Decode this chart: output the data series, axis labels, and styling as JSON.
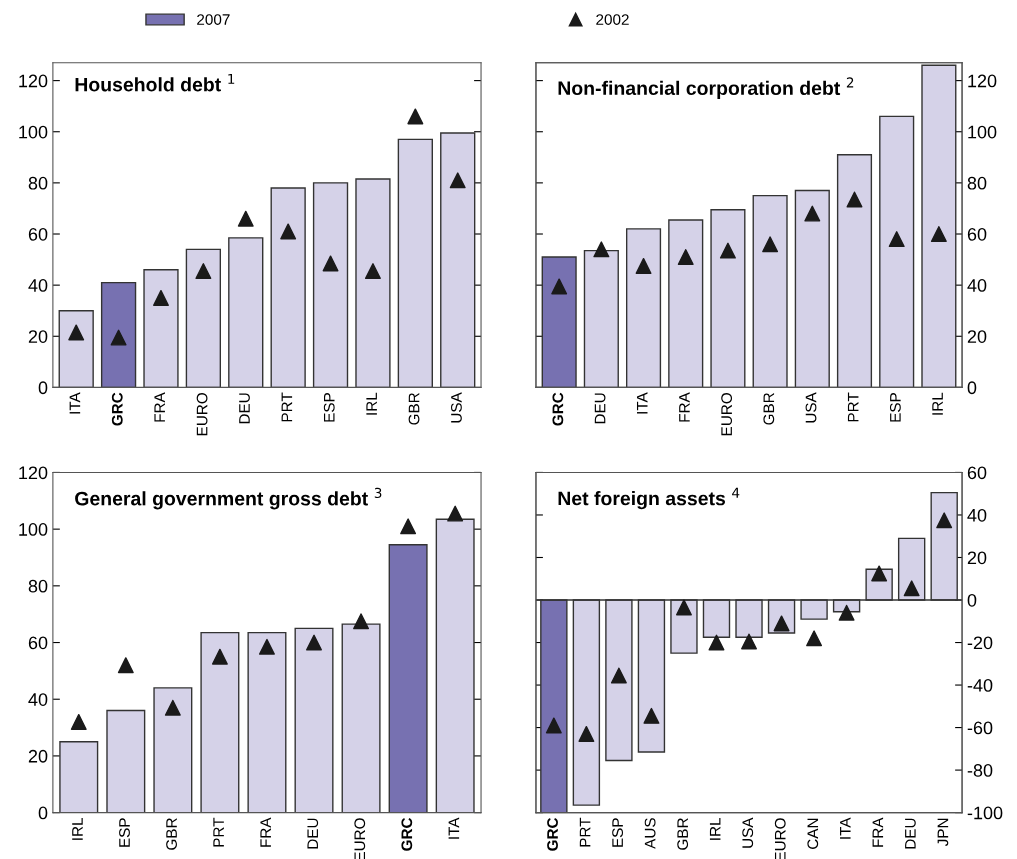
{
  "chart_data": [
    {
      "type": "bar",
      "title": "Household debt $^{1}$",
      "categories": [
        "ITA",
        "GRC",
        "FRA",
        "EURO",
        "DEU",
        "PRT",
        "ESP",
        "IRL",
        "GBR",
        "USA"
      ],
      "ylim": [
        0,
        127
      ],
      "yticks": [
        0,
        20,
        40,
        60,
        80,
        100,
        120
      ],
      "legend": "top",
      "grid": false,
      "series": [
        {
          "name": "2007",
          "colors": [
            "#d5d2e8",
            "#7771b1",
            "#d5d2e8",
            "#d5d2e8",
            "#d5d2e8",
            "#d5d2e8",
            "#d5d2e8",
            "#d5d2e8",
            "#d5d2e8",
            "#d5d2e8"
          ],
          "values": [
            30,
            41,
            46,
            54,
            58.5,
            78,
            80,
            81.5,
            97,
            99.5
          ]
        },
        {
          "name": "2002",
          "type": "scatter",
          "color": "#1a1a1a",
          "marker": "triangle",
          "values": [
            21.5,
            19.5,
            35,
            45.5,
            66,
            61,
            48.5,
            45.5,
            106,
            81
          ]
        }
      ]
    },
    {
      "type": "bar",
      "title": "Non-financial corporation debt $^{2}$",
      "categories": [
        "GRC",
        "DEU",
        "ITA",
        "FRA",
        "EURO",
        "GBR",
        "USA",
        "PRT",
        "ESP",
        "IRL"
      ],
      "y2lim": [
        0,
        127
      ],
      "y2ticks": [
        0,
        20,
        40,
        60,
        80,
        100,
        120
      ],
      "grid": false,
      "series": [
        {
          "name": "2007",
          "axis": "y2",
          "colors": [
            "#7771b1",
            "#d5d2e8",
            "#d5d2e8",
            "#d5d2e8",
            "#d5d2e8",
            "#d5d2e8",
            "#d5d2e8",
            "#d5d2e8",
            "#d5d2e8",
            "#d5d2e8"
          ],
          "values": [
            51,
            53.5,
            62,
            65.5,
            69.5,
            75,
            77,
            91,
            106,
            126
          ]
        },
        {
          "name": "2002",
          "type": "scatter",
          "axis": "y2",
          "color": "#1a1a1a",
          "marker": "triangle",
          "values": [
            39.5,
            54,
            47.5,
            51,
            53.5,
            56,
            68,
            73.5,
            58,
            60
          ]
        }
      ]
    },
    {
      "type": "bar",
      "title": "General government gross debt $^{3}$",
      "categories": [
        "IRL",
        "ESP",
        "GBR",
        "PRT",
        "FRA",
        "DEU",
        "EURO",
        "GRC",
        "ITA"
      ],
      "ylim": [
        0,
        120
      ],
      "yticks": [
        0,
        20,
        40,
        60,
        80,
        100,
        120
      ],
      "grid": false,
      "series": [
        {
          "name": "2007",
          "colors": [
            "#d5d2e8",
            "#d5d2e8",
            "#d5d2e8",
            "#d5d2e8",
            "#d5d2e8",
            "#d5d2e8",
            "#d5d2e8",
            "#7771b1",
            "#d5d2e8"
          ],
          "values": [
            25,
            36,
            44,
            63.5,
            63.5,
            65,
            66.5,
            94.5,
            103.5
          ]
        },
        {
          "name": "2002",
          "type": "scatter",
          "color": "#1a1a1a",
          "marker": "triangle",
          "values": [
            32,
            52,
            37,
            55,
            58.5,
            60,
            67.5,
            101,
            105.5
          ]
        }
      ]
    },
    {
      "type": "bar",
      "title": "Net foreign assets $^{4}$",
      "categories": [
        "GRC",
        "PRT",
        "ESP",
        "AUS",
        "GBR",
        "IRL",
        "USA",
        "EURO",
        "CAN",
        "ITA",
        "FRA",
        "DEU",
        "JPN"
      ],
      "y2lim": [
        -100,
        60
      ],
      "y2ticks": [
        -100,
        -80,
        -60,
        -40,
        -20,
        0,
        20,
        40,
        60
      ],
      "grid": false,
      "ref_lines": [
        {
          "axis": "y2",
          "value": 0,
          "color": "#333333"
        }
      ],
      "series": [
        {
          "name": "2007",
          "axis": "y2",
          "colors": [
            "#7771b1",
            "#d5d2e8",
            "#d5d2e8",
            "#d5d2e8",
            "#d5d2e8",
            "#d5d2e8",
            "#d5d2e8",
            "#d5d2e8",
            "#d5d2e8",
            "#d5d2e8",
            "#d5d2e8",
            "#d5d2e8",
            "#d5d2e8"
          ],
          "values": [
            -100,
            -96.5,
            -75.5,
            -71.5,
            -25,
            -17.5,
            -17.5,
            -15.5,
            -9,
            -5.5,
            14.5,
            29,
            50.5
          ]
        },
        {
          "name": "2002",
          "type": "scatter",
          "axis": "y2",
          "color": "#1a1a1a",
          "marker": "triangle",
          "values": [
            -59,
            -63,
            -35.5,
            -54.5,
            -3.5,
            -20,
            -19.5,
            -11,
            -18,
            -6,
            12.5,
            5.5,
            37.5
          ]
        }
      ]
    }
  ]
}
